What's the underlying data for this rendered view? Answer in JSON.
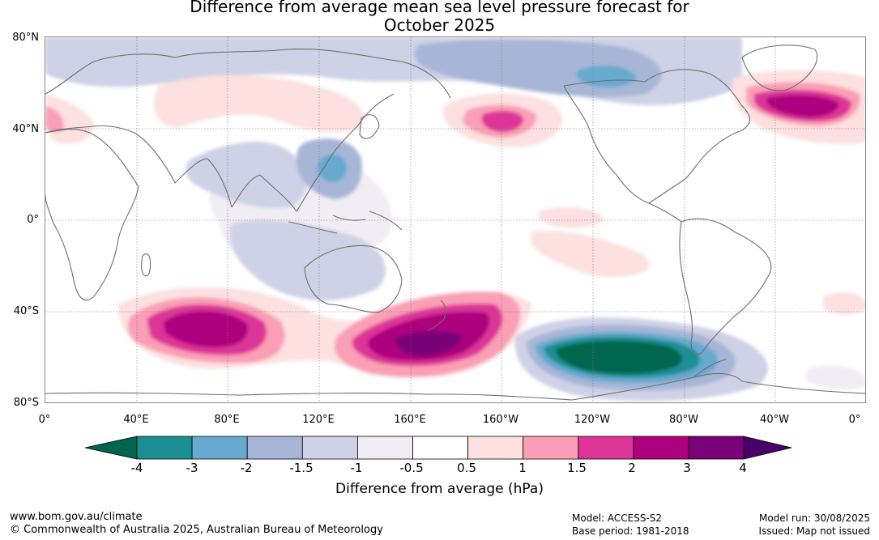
{
  "title": {
    "line1": "Difference from average mean sea level pressure forecast for",
    "line2": "October 2025"
  },
  "map": {
    "projection": "equirectangular",
    "lon_range": [
      0,
      360
    ],
    "lat_range": [
      -80,
      80
    ],
    "lat_labels": [
      "80°N",
      "40°N",
      "0°",
      "40°S",
      "80°S"
    ],
    "lon_labels": [
      "0°",
      "40°E",
      "80°E",
      "120°E",
      "160°E",
      "160°W",
      "120°W",
      "80°W",
      "40°W",
      "0°"
    ],
    "gridlines": true,
    "anomaly_features": [
      {
        "region": "Southern Indian Ocean",
        "lon": 75,
        "lat": -47,
        "sign": "positive",
        "peak_hPa": 3
      },
      {
        "region": "Southwest Pacific, east of New Zealand",
        "lon": 180,
        "lat": -52,
        "sign": "positive",
        "peak_hPa": 4
      },
      {
        "region": "Southeast Pacific",
        "lon": 248,
        "lat": -60,
        "sign": "negative",
        "peak_hPa": -4
      },
      {
        "region": "North Atlantic",
        "lon": 330,
        "lat": 50,
        "sign": "positive",
        "peak_hPa": 3
      },
      {
        "region": "North Pacific",
        "lon": 200,
        "lat": 45,
        "sign": "positive",
        "peak_hPa": 2
      },
      {
        "region": "East Asia",
        "lon": 122,
        "lat": 25,
        "sign": "negative",
        "peak_hPa": -2
      },
      {
        "region": "Arctic",
        "lon": 250,
        "lat": 65,
        "sign": "negative",
        "peak_hPa": -2
      }
    ]
  },
  "colorbar": {
    "labels": [
      "-4",
      "-3",
      "-2",
      "-1.5",
      "-1",
      "-0.5",
      "0.5",
      "1",
      "1.5",
      "2",
      "3",
      "4"
    ],
    "colors": [
      "#00664d",
      "#1a8f94",
      "#67a9cf",
      "#a7b6d6",
      "#cfd1e6",
      "#f1edf4",
      "#ffffff",
      "#fde0e0",
      "#fa9fb5",
      "#dd3497",
      "#ae017e",
      "#7a0177",
      "#49006a"
    ],
    "title": "Difference from average (hPa)"
  },
  "footer": {
    "url": "www.bom.gov.au/climate",
    "copyright": "© Commonwealth of Australia 2025, Australian Bureau of Meteorology",
    "model": "Model: ACCESS-S2",
    "base_period": "Base period: 1981-2018",
    "model_run": "Model run: 30/08/2025",
    "issued": "Issued: Map not issued"
  }
}
